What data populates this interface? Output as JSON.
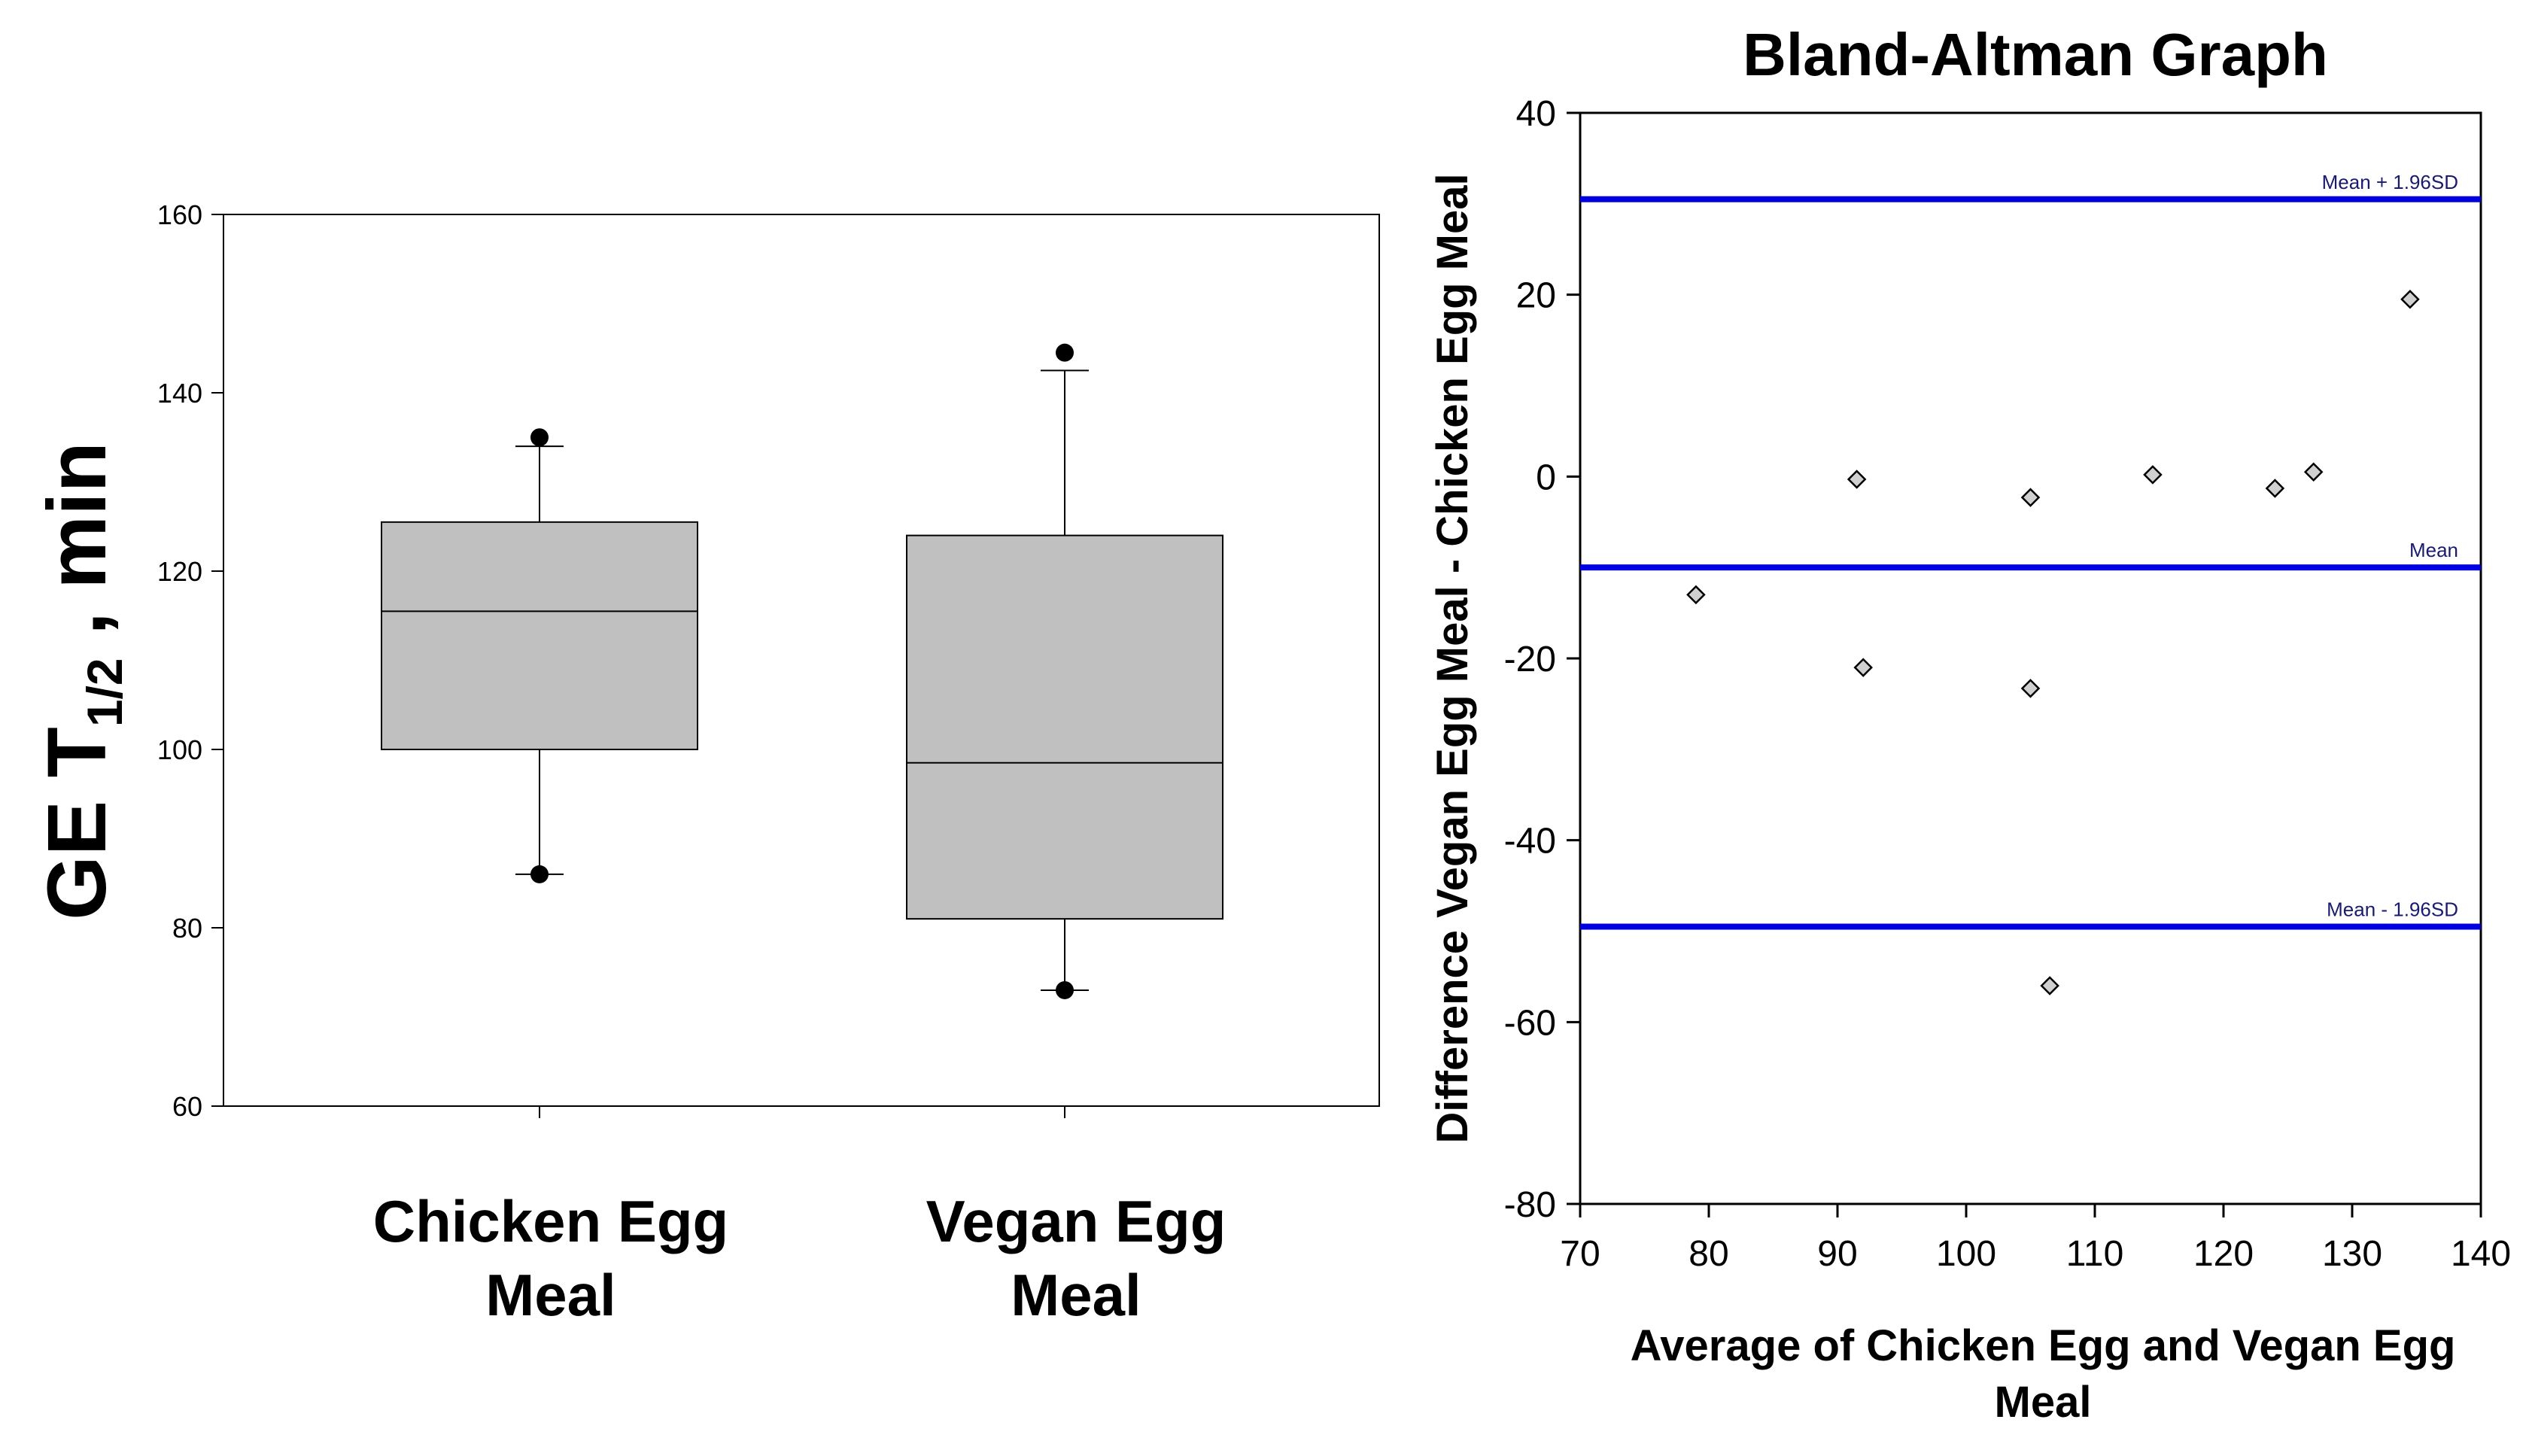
{
  "chart_data": [
    {
      "type": "box",
      "ylabel_main": "GE T",
      "ylabel_sub": "1/2",
      "ylabel_suffix": " , min",
      "ylim": [
        60,
        160
      ],
      "yticks": [
        "60",
        "80",
        "100",
        "120",
        "140",
        "160"
      ],
      "box_fill": "#c0c0c0",
      "boxes": [
        {
          "name_lines": [
            "Chicken Egg",
            "Meal"
          ],
          "whisker_low": 86,
          "q1": 100,
          "median": 115.5,
          "q3": 125.5,
          "whisker_high": 134,
          "outliers": [
            86,
            135
          ]
        },
        {
          "name_lines": [
            "Vegan Egg",
            "Meal"
          ],
          "whisker_low": 73,
          "q1": 81,
          "median": 98.5,
          "q3": 124,
          "whisker_high": 142.5,
          "outliers": [
            73,
            144.5
          ]
        }
      ]
    },
    {
      "type": "scatter",
      "title": "Bland-Altman Graph",
      "xlabel_lines": [
        "Average of Chicken Egg and Vegan Egg",
        "Meal"
      ],
      "ylabel": "Difference Vegan Egg Meal - Chicken Egg Meal",
      "xlim": [
        70,
        140
      ],
      "ylim": [
        -80,
        40
      ],
      "xticks": [
        "70",
        "80",
        "90",
        "100",
        "110",
        "120",
        "130",
        "140"
      ],
      "yticks": [
        "-80",
        "-60",
        "-40",
        "-20",
        "0",
        "20",
        "40"
      ],
      "line_color": "#0000e0",
      "ref_lines": [
        {
          "label": "Mean + 1.96SD",
          "y": 30.5
        },
        {
          "label": "Mean",
          "y": -10
        },
        {
          "label": "Mean - 1.96SD",
          "y": -49.5
        }
      ],
      "points": [
        {
          "x": 79,
          "y": -13
        },
        {
          "x": 91.5,
          "y": -0.3
        },
        {
          "x": 92,
          "y": -21
        },
        {
          "x": 105,
          "y": -2.3
        },
        {
          "x": 105,
          "y": -23.3
        },
        {
          "x": 106.5,
          "y": -56
        },
        {
          "x": 114.5,
          "y": 0.2
        },
        {
          "x": 124,
          "y": -1.3
        },
        {
          "x": 127,
          "y": 0.5
        },
        {
          "x": 134.5,
          "y": 19.5
        }
      ]
    }
  ]
}
